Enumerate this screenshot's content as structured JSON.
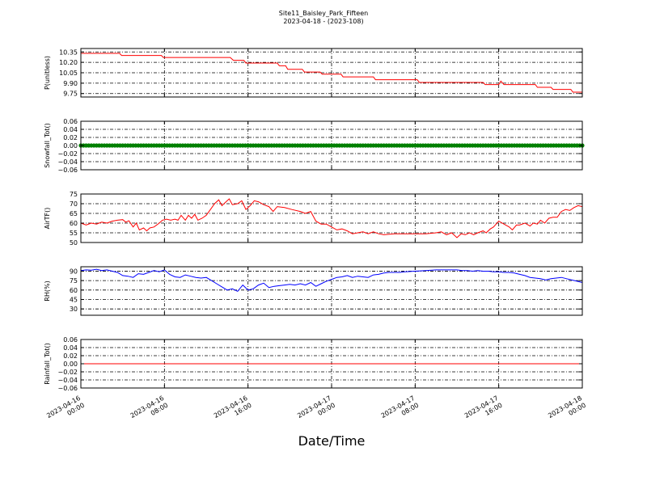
{
  "title": {
    "line1": "Site11_Baisley_Park_Fifteen",
    "line2": "2023-04-18 - (2023-108)"
  },
  "xlabel": "Date/Time",
  "colors": {
    "pressure": "#ff0000",
    "snowfall": "#008000",
    "airtemp": "#ff0000",
    "rh": "#0000ff",
    "rainfall": "#ff0000"
  },
  "chart_data": [
    {
      "type": "line",
      "ylabel": "P(unitless)",
      "xlim": [
        0,
        48
      ],
      "ylim": [
        9.7,
        10.4
      ],
      "yticks": [
        9.75,
        9.9,
        10.05,
        10.2,
        10.35
      ],
      "ytick_labels": [
        "9.75",
        "9.90",
        "10.05",
        "10.20",
        "10.35"
      ],
      "grid": true,
      "series": [
        {
          "color": "#ff0000",
          "points": [
            [
              0,
              10.33
            ],
            [
              3.7,
              10.33
            ],
            [
              3.9,
              10.3
            ],
            [
              7.7,
              10.3
            ],
            [
              7.9,
              10.27
            ],
            [
              14.3,
              10.27
            ],
            [
              14.6,
              10.23
            ],
            [
              15.6,
              10.23
            ],
            [
              15.8,
              10.19
            ],
            [
              18.8,
              10.19
            ],
            [
              19.0,
              10.15
            ],
            [
              19.6,
              10.15
            ],
            [
              19.8,
              10.1
            ],
            [
              21.2,
              10.1
            ],
            [
              21.4,
              10.06
            ],
            [
              22.9,
              10.06
            ],
            [
              23.1,
              10.03
            ],
            [
              24.9,
              10.03
            ],
            [
              25.1,
              9.99
            ],
            [
              28.0,
              9.99
            ],
            [
              28.2,
              9.95
            ],
            [
              32.2,
              9.95
            ],
            [
              32.4,
              9.91
            ],
            [
              38.5,
              9.91
            ],
            [
              38.7,
              9.88
            ],
            [
              40.0,
              9.88
            ],
            [
              40.2,
              9.93
            ],
            [
              40.5,
              9.88
            ],
            [
              43.5,
              9.88
            ],
            [
              43.7,
              9.84
            ],
            [
              45.0,
              9.84
            ],
            [
              45.2,
              9.81
            ],
            [
              46.9,
              9.81
            ],
            [
              47.1,
              9.77
            ],
            [
              48,
              9.77
            ]
          ]
        }
      ]
    },
    {
      "type": "scatter",
      "ylabel": "Snowfall_Tot()",
      "xlim": [
        0,
        48
      ],
      "ylim": [
        -0.06,
        0.06
      ],
      "yticks": [
        -0.06,
        -0.04,
        -0.02,
        0.0,
        0.02,
        0.04,
        0.06
      ],
      "ytick_labels": [
        "−0.06",
        "−0.04",
        "−0.02",
        "0.00",
        "0.02",
        "0.04",
        "0.06"
      ],
      "grid": true,
      "series": [
        {
          "color": "#008000",
          "x_start": 0,
          "x_end": 48,
          "x_step": 0.25,
          "y": 0.0
        }
      ]
    },
    {
      "type": "line",
      "ylabel": "AirTF()",
      "xlim": [
        0,
        48
      ],
      "ylim": [
        50,
        75
      ],
      "yticks": [
        50,
        55,
        60,
        65,
        70,
        75
      ],
      "ytick_labels": [
        "50",
        "55",
        "60",
        "65",
        "70",
        "75"
      ],
      "grid": true,
      "series": [
        {
          "color": "#ff0000",
          "points": [
            [
              0,
              60
            ],
            [
              0.5,
              59
            ],
            [
              1,
              60
            ],
            [
              1.5,
              59.5
            ],
            [
              2,
              60.5
            ],
            [
              2.5,
              60
            ],
            [
              3,
              61
            ],
            [
              3.5,
              61.5
            ],
            [
              4,
              61.8
            ],
            [
              4.3,
              60.5
            ],
            [
              4.6,
              61.2
            ],
            [
              5,
              58
            ],
            [
              5.3,
              60
            ],
            [
              5.6,
              56.5
            ],
            [
              6,
              57.5
            ],
            [
              6.3,
              56
            ],
            [
              6.6,
              57.5
            ],
            [
              7,
              58
            ],
            [
              7.5,
              60
            ],
            [
              7.8,
              61.5
            ],
            [
              8.2,
              62
            ],
            [
              8.6,
              61.5
            ],
            [
              9,
              62
            ],
            [
              9.3,
              61.5
            ],
            [
              9.6,
              64
            ],
            [
              10,
              61.5
            ],
            [
              10.3,
              64
            ],
            [
              10.6,
              62.5
            ],
            [
              10.9,
              64.5
            ],
            [
              11.2,
              61.5
            ],
            [
              11.6,
              62.5
            ],
            [
              12,
              64
            ],
            [
              12.4,
              67
            ],
            [
              12.8,
              70
            ],
            [
              13.2,
              72
            ],
            [
              13.5,
              69
            ],
            [
              13.9,
              71
            ],
            [
              14.2,
              72.5
            ],
            [
              14.5,
              69.5
            ],
            [
              15,
              70
            ],
            [
              15.4,
              71.5
            ],
            [
              15.8,
              67
            ],
            [
              16.2,
              69
            ],
            [
              16.6,
              71.5
            ],
            [
              17,
              71
            ],
            [
              17.5,
              69.5
            ],
            [
              18,
              68.5
            ],
            [
              18.4,
              66
            ],
            [
              18.8,
              68.5
            ],
            [
              19.5,
              68
            ],
            [
              20.2,
              67
            ],
            [
              21,
              66
            ],
            [
              21.5,
              65
            ],
            [
              22,
              66
            ],
            [
              22.5,
              61
            ],
            [
              23,
              59.5
            ],
            [
              23.5,
              59.5
            ],
            [
              24,
              58
            ],
            [
              24.5,
              56.5
            ],
            [
              25,
              57
            ],
            [
              25.5,
              56
            ],
            [
              26,
              54.5
            ],
            [
              26.5,
              55
            ],
            [
              27,
              55.5
            ],
            [
              27.5,
              54.5
            ],
            [
              28,
              55.5
            ],
            [
              28.5,
              54.5
            ],
            [
              29,
              54
            ],
            [
              30,
              54.5
            ],
            [
              31,
              54.5
            ],
            [
              32,
              54.5
            ],
            [
              33,
              54.5
            ],
            [
              34,
              55
            ],
            [
              34.5,
              55.5
            ],
            [
              35,
              54
            ],
            [
              35.5,
              55
            ],
            [
              36,
              52.5
            ],
            [
              36.4,
              54.5
            ],
            [
              36.8,
              54
            ],
            [
              37.2,
              55
            ],
            [
              37.6,
              54
            ],
            [
              38,
              55
            ],
            [
              38.5,
              56
            ],
            [
              38.8,
              55
            ],
            [
              39.2,
              57
            ],
            [
              39.5,
              58
            ],
            [
              40,
              61
            ],
            [
              40.5,
              59.5
            ],
            [
              41,
              58
            ],
            [
              41.3,
              56.5
            ],
            [
              41.7,
              59
            ],
            [
              42,
              59
            ],
            [
              42.5,
              60
            ],
            [
              43,
              58.5
            ],
            [
              43.3,
              60
            ],
            [
              43.7,
              59.5
            ],
            [
              44,
              61.5
            ],
            [
              44.4,
              60
            ],
            [
              44.8,
              62.5
            ],
            [
              45.2,
              63
            ],
            [
              45.6,
              63
            ],
            [
              46,
              66
            ],
            [
              46.4,
              67
            ],
            [
              46.8,
              66.5
            ],
            [
              47.2,
              68
            ],
            [
              47.6,
              69
            ],
            [
              48,
              68.5
            ]
          ]
        }
      ]
    },
    {
      "type": "line",
      "ylabel": "RH(%)",
      "xlim": [
        0,
        48
      ],
      "ylim": [
        20,
        97
      ],
      "yticks": [
        30,
        45,
        60,
        75,
        90
      ],
      "ytick_labels": [
        "30",
        "45",
        "60",
        "75",
        "90"
      ],
      "grid": true,
      "series": [
        {
          "color": "#0000ff",
          "points": [
            [
              0,
              91
            ],
            [
              0.5,
              92
            ],
            [
              1,
              91.5
            ],
            [
              1.5,
              93
            ],
            [
              2,
              91
            ],
            [
              2.5,
              92
            ],
            [
              3,
              90
            ],
            [
              3.5,
              88
            ],
            [
              4,
              83
            ],
            [
              4.5,
              82
            ],
            [
              5,
              80
            ],
            [
              5.5,
              86
            ],
            [
              6,
              85
            ],
            [
              6.5,
              88
            ],
            [
              7,
              91
            ],
            [
              7.5,
              89
            ],
            [
              8,
              92
            ],
            [
              8.5,
              85
            ],
            [
              9,
              81
            ],
            [
              9.5,
              80
            ],
            [
              10,
              84
            ],
            [
              10.5,
              82
            ],
            [
              11,
              80
            ],
            [
              11.5,
              79
            ],
            [
              12,
              80
            ],
            [
              12.5,
              75
            ],
            [
              13,
              70
            ],
            [
              13.5,
              65
            ],
            [
              14,
              60
            ],
            [
              14.5,
              62
            ],
            [
              15,
              58
            ],
            [
              15.5,
              68
            ],
            [
              16,
              60
            ],
            [
              16.5,
              62
            ],
            [
              17,
              68
            ],
            [
              17.5,
              71
            ],
            [
              18,
              64
            ],
            [
              18.5,
              66
            ],
            [
              19,
              67
            ],
            [
              19.5,
              68
            ],
            [
              20,
              69
            ],
            [
              20.5,
              68
            ],
            [
              21,
              70
            ],
            [
              21.5,
              68
            ],
            [
              22,
              72
            ],
            [
              22.5,
              66
            ],
            [
              23,
              70
            ],
            [
              23.5,
              74
            ],
            [
              24,
              77
            ],
            [
              24.5,
              80
            ],
            [
              25,
              81
            ],
            [
              25.5,
              83
            ],
            [
              26,
              80
            ],
            [
              26.5,
              82
            ],
            [
              27,
              81
            ],
            [
              27.5,
              80
            ],
            [
              28,
              84
            ],
            [
              28.5,
              85
            ],
            [
              29,
              87
            ],
            [
              29.5,
              88
            ],
            [
              30,
              88
            ],
            [
              30.5,
              88
            ],
            [
              31,
              89
            ],
            [
              32,
              90
            ],
            [
              33,
              91
            ],
            [
              34,
              92
            ],
            [
              35,
              92
            ],
            [
              36,
              92
            ],
            [
              36.5,
              91
            ],
            [
              37,
              91
            ],
            [
              37.5,
              90
            ],
            [
              38,
              91
            ],
            [
              38.5,
              90
            ],
            [
              39,
              90
            ],
            [
              39.5,
              89
            ],
            [
              40,
              89
            ],
            [
              40.5,
              88
            ],
            [
              41,
              88
            ],
            [
              41.5,
              87
            ],
            [
              42,
              85
            ],
            [
              42.5,
              83
            ],
            [
              43,
              80
            ],
            [
              43.5,
              79
            ],
            [
              44,
              78
            ],
            [
              44.5,
              76
            ],
            [
              45,
              78
            ],
            [
              45.5,
              79
            ],
            [
              46,
              80
            ],
            [
              46.5,
              78
            ],
            [
              47,
              76
            ],
            [
              47.5,
              74
            ],
            [
              48,
              72
            ]
          ]
        }
      ]
    },
    {
      "type": "line",
      "ylabel": "Rainfall_Tot()",
      "xlim": [
        0,
        48
      ],
      "ylim": [
        -0.06,
        0.06
      ],
      "yticks": [
        -0.06,
        -0.04,
        -0.02,
        0.0,
        0.02,
        0.04,
        0.06
      ],
      "ytick_labels": [
        "−0.06",
        "−0.04",
        "−0.02",
        "0.00",
        "0.02",
        "0.04",
        "0.06"
      ],
      "grid": true,
      "series": [
        {
          "color": "#ff0000",
          "points": [
            [
              0,
              0
            ],
            [
              48,
              0
            ]
          ]
        }
      ]
    }
  ],
  "x_axis": {
    "xlim": [
      0,
      48
    ],
    "ticks": [
      0,
      8,
      16,
      24,
      32,
      40,
      48
    ],
    "tick_labels": [
      [
        "2023-04-16",
        "00:00"
      ],
      [
        "2023-04-16",
        "08:00"
      ],
      [
        "2023-04-16",
        "16:00"
      ],
      [
        "2023-04-17",
        "00:00"
      ],
      [
        "2023-04-17",
        "08:00"
      ],
      [
        "2023-04-17",
        "16:00"
      ],
      [
        "2023-04-18",
        "00:00"
      ]
    ]
  }
}
